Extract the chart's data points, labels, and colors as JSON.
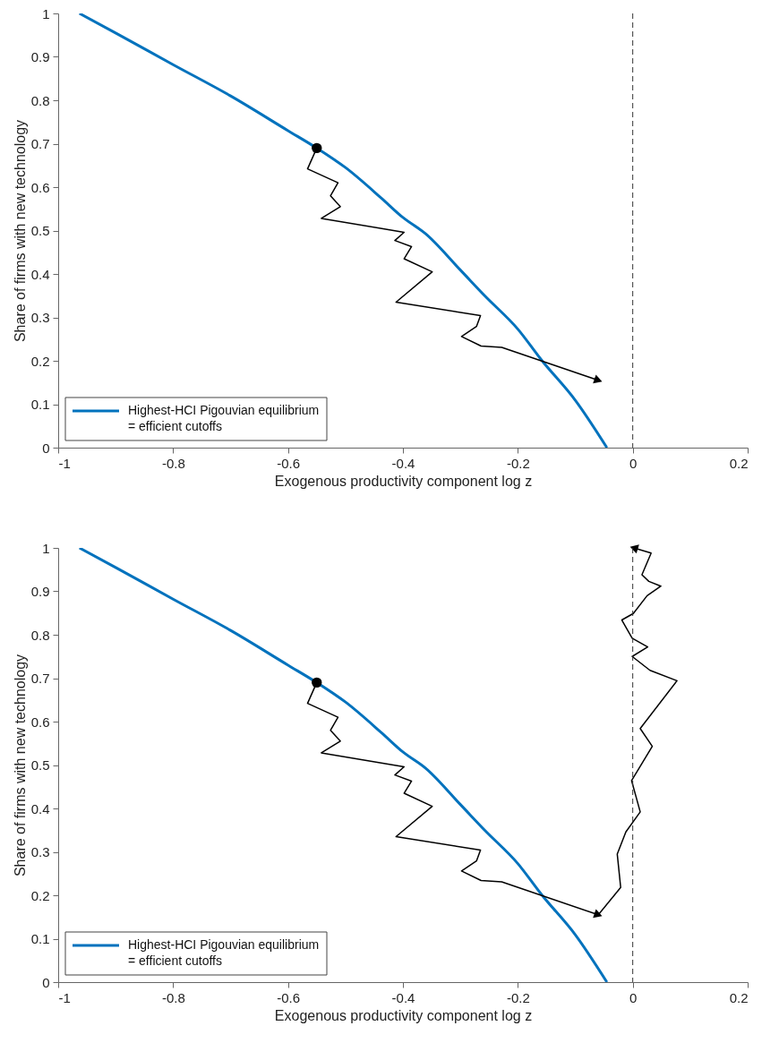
{
  "chart_data": [
    {
      "type": "line",
      "xlabel": "Exogenous productivity component log z",
      "ylabel": "Share of firms with new technology",
      "xlim": [
        -1,
        0.2
      ],
      "ylim": [
        0,
        1
      ],
      "xticks": [
        -1,
        -0.8,
        -0.6,
        -0.4,
        -0.2,
        0,
        0.2
      ],
      "yticks": [
        0,
        0.1,
        0.2,
        0.3,
        0.4,
        0.5,
        0.6,
        0.7,
        0.8,
        0.9,
        1
      ],
      "grid": false,
      "legend": "bottom left",
      "series": [
        {
          "name": "Highest-HCI Pigouvian equilibrium\n= efficient cutoffs",
          "color": "#0072bd",
          "x": [
            -0.963,
            -0.9,
            -0.8,
            -0.7,
            -0.6,
            -0.55,
            -0.5,
            -0.437,
            -0.4,
            -0.36,
            -0.3,
            -0.257,
            -0.2,
            -0.159,
            -0.1,
            -0.045
          ],
          "values": [
            1,
            0.955,
            0.882,
            0.81,
            0.73,
            0.69,
            0.645,
            0.574,
            0.53,
            0.492,
            0.409,
            0.349,
            0.273,
            0.202,
            0.109,
            0
          ]
        },
        {
          "color": "#000000",
          "x": [
            -0.55,
            -0.566,
            -0.513,
            -0.526,
            -0.509,
            -0.542,
            -0.398,
            -0.414,
            -0.385,
            -0.398,
            -0.349,
            -0.412,
            -0.265,
            -0.272,
            -0.298,
            -0.264,
            -0.228,
            -0.06
          ],
          "values": [
            0.69,
            0.642,
            0.61,
            0.58,
            0.555,
            0.528,
            0.496,
            0.477,
            0.463,
            0.435,
            0.405,
            0.335,
            0.304,
            0.279,
            0.256,
            0.234,
            0.231,
            0.155
          ]
        },
        {
          "type": "scatter",
          "color": "#000000",
          "x": [
            -0.55
          ],
          "values": [
            0.69
          ]
        }
      ],
      "ref_lines": [
        {
          "axis": "x",
          "value": 0,
          "color": "#333333",
          "line_style": "dashed"
        }
      ]
    },
    {
      "type": "line",
      "xlabel": "Exogenous productivity component log z",
      "ylabel": "Share of firms with new technology",
      "xlim": [
        -1,
        0.2
      ],
      "ylim": [
        0,
        1
      ],
      "xticks": [
        -1,
        -0.8,
        -0.6,
        -0.4,
        -0.2,
        0,
        0.2
      ],
      "yticks": [
        0,
        0.1,
        0.2,
        0.3,
        0.4,
        0.5,
        0.6,
        0.7,
        0.8,
        0.9,
        1
      ],
      "grid": false,
      "legend": "bottom left",
      "series": [
        {
          "name": "Highest-HCI Pigouvian equilibrium\n= efficient cutoffs",
          "color": "#0072bd",
          "x": [
            -0.963,
            -0.9,
            -0.8,
            -0.7,
            -0.6,
            -0.55,
            -0.5,
            -0.437,
            -0.4,
            -0.36,
            -0.3,
            -0.257,
            -0.2,
            -0.159,
            -0.1,
            -0.045
          ],
          "values": [
            1,
            0.955,
            0.882,
            0.81,
            0.73,
            0.69,
            0.645,
            0.574,
            0.53,
            0.492,
            0.409,
            0.349,
            0.273,
            0.202,
            0.109,
            0
          ]
        },
        {
          "color": "#000000",
          "x": [
            -0.55,
            -0.566,
            -0.513,
            -0.526,
            -0.509,
            -0.542,
            -0.398,
            -0.414,
            -0.385,
            -0.398,
            -0.349,
            -0.412,
            -0.265,
            -0.272,
            -0.298,
            -0.264,
            -0.228,
            -0.06
          ],
          "values": [
            0.69,
            0.642,
            0.61,
            0.58,
            0.555,
            0.528,
            0.496,
            0.477,
            0.463,
            0.435,
            0.405,
            0.335,
            0.304,
            0.279,
            0.256,
            0.234,
            0.231,
            0.155
          ]
        },
        {
          "color": "#000000",
          "x": [
            -0.06,
            -0.021,
            -0.027,
            -0.012,
            0.013,
            -0.002,
            0.034,
            0.013,
            0.077,
            0.03,
            -0.001,
            0.026,
            -0.001,
            -0.019,
            0.001,
            0.025,
            0.049,
            0.028,
            0.016,
            0.032,
            0.002
          ],
          "values": [
            0.155,
            0.218,
            0.295,
            0.346,
            0.392,
            0.464,
            0.543,
            0.584,
            0.694,
            0.718,
            0.75,
            0.772,
            0.792,
            0.834,
            0.849,
            0.89,
            0.912,
            0.923,
            0.938,
            0.988,
            1.0
          ]
        },
        {
          "type": "scatter",
          "color": "#000000",
          "x": [
            -0.55
          ],
          "values": [
            0.69
          ]
        }
      ],
      "ref_lines": [
        {
          "axis": "x",
          "value": 0,
          "color": "#333333",
          "line_style": "dashed"
        }
      ]
    }
  ]
}
